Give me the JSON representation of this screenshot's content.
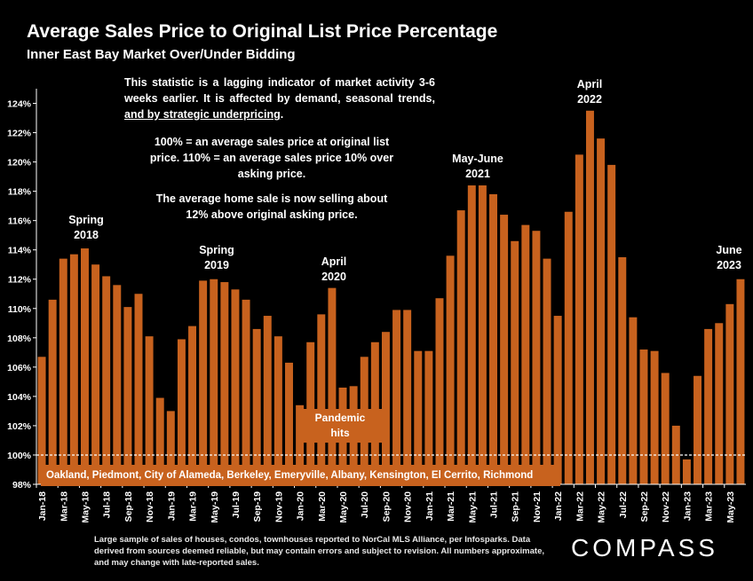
{
  "title": "Average Sales Price to Original List Price Percentage",
  "subtitle": "Inner East Bay Market Over/Under Bidding",
  "notes": {
    "n1a": "This statistic is a lagging indicator of market activity 3-6 weeks earlier. It is affected by demand, seasonal trends, ",
    "n1b": "and by strategic underpricing",
    "n1c": ".",
    "n2": "100% = an average sales price at original list price. 110% = an average sales price 10% over asking price.",
    "n3": "The average home sale is now selling about 12% above original asking price."
  },
  "peak_labels": {
    "spring2018": [
      "Spring",
      "2018"
    ],
    "spring2019": [
      "Spring",
      "2019"
    ],
    "april2020": [
      "April",
      "2020"
    ],
    "mayjune2021": [
      "May-June",
      "2021"
    ],
    "april2022": [
      "April",
      "2022"
    ],
    "june2023": [
      "June",
      "2023"
    ]
  },
  "pandemic_box": [
    "Pandemic",
    "hits"
  ],
  "areas_box": "Oakland, Piedmont, City of Alameda, Berkeley, Emeryville, Albany, Kensington, El Cerrito, Richmond",
  "footnote": "Large sample of sales of houses, condos, townhouses reported to NorCal MLS Alliance, per Infosparks. Data derived from sources deemed reliable, but may contain errors and subject to revision. All numbers approximate, and may change with late-reported sales.",
  "logo": "COMPASS",
  "colors": {
    "bar": "#c8621e",
    "background": "#000000",
    "reference_line": "#ffffff"
  },
  "chart_data": {
    "type": "bar",
    "ylim": [
      98,
      125
    ],
    "yticks": [
      98,
      100,
      102,
      104,
      106,
      108,
      110,
      112,
      114,
      116,
      118,
      120,
      122,
      124
    ],
    "ytick_format": "percent",
    "reference_line": 100,
    "categories": [
      "Jan-18",
      "Feb-18",
      "Mar-18",
      "Apr-18",
      "May-18",
      "Jun-18",
      "Jul-18",
      "Aug-18",
      "Sep-18",
      "Oct-18",
      "Nov-18",
      "Dec-18",
      "Jan-19",
      "Feb-19",
      "Mar-19",
      "Apr-19",
      "May-19",
      "Jun-19",
      "Jul-19",
      "Aug-19",
      "Sep-19",
      "Oct-19",
      "Nov-19",
      "Dec-19",
      "Jan-20",
      "Feb-20",
      "Mar-20",
      "Apr-20",
      "May-20",
      "Jun-20",
      "Jul-20",
      "Aug-20",
      "Sep-20",
      "Oct-20",
      "Nov-20",
      "Dec-20",
      "Jan-21",
      "Feb-21",
      "Mar-21",
      "Apr-21",
      "May-21",
      "Jun-21",
      "Jul-21",
      "Aug-21",
      "Sep-21",
      "Oct-21",
      "Nov-21",
      "Dec-21",
      "Jan-22",
      "Feb-22",
      "Mar-22",
      "Apr-22",
      "May-22",
      "Jun-22",
      "Jul-22",
      "Aug-22",
      "Sep-22",
      "Oct-22",
      "Nov-22",
      "Dec-22",
      "Jan-23",
      "Feb-23",
      "Mar-23",
      "Apr-23",
      "May-23",
      "Jun-23"
    ],
    "tick_labels": [
      "Jan-18",
      "Mar-18",
      "May-18",
      "Jul-18",
      "Sep-18",
      "Nov-18",
      "Jan-19",
      "Mar-19",
      "May-19",
      "Jul-19",
      "Sep-19",
      "Nov-19",
      "Jan-20",
      "Mar-20",
      "May-20",
      "Jul-20",
      "Sep-20",
      "Nov-20",
      "Jan-21",
      "Mar-21",
      "May-21",
      "Jul-21",
      "Sep-21",
      "Nov-21",
      "Jan-22",
      "Mar-22",
      "May-22",
      "Jul-22",
      "Sep-22",
      "Nov-22",
      "Jan-23",
      "Mar-23",
      "May-23"
    ],
    "values": [
      106.7,
      110.6,
      113.4,
      113.7,
      114.1,
      113.0,
      112.2,
      111.6,
      110.1,
      111.0,
      108.1,
      103.9,
      103.0,
      107.9,
      108.8,
      111.9,
      112.0,
      111.8,
      111.3,
      110.6,
      108.6,
      109.5,
      108.1,
      106.3,
      103.4,
      107.7,
      109.6,
      111.4,
      104.6,
      104.7,
      106.7,
      107.7,
      108.4,
      109.9,
      109.9,
      107.1,
      107.1,
      110.7,
      113.6,
      116.7,
      118.4,
      118.4,
      117.8,
      116.4,
      114.6,
      115.7,
      115.3,
      113.4,
      109.5,
      116.6,
      120.5,
      123.5,
      121.6,
      119.8,
      113.5,
      109.4,
      107.2,
      107.1,
      105.6,
      102.0,
      99.7,
      105.4,
      108.6,
      109.0,
      110.3,
      112.0
    ]
  }
}
